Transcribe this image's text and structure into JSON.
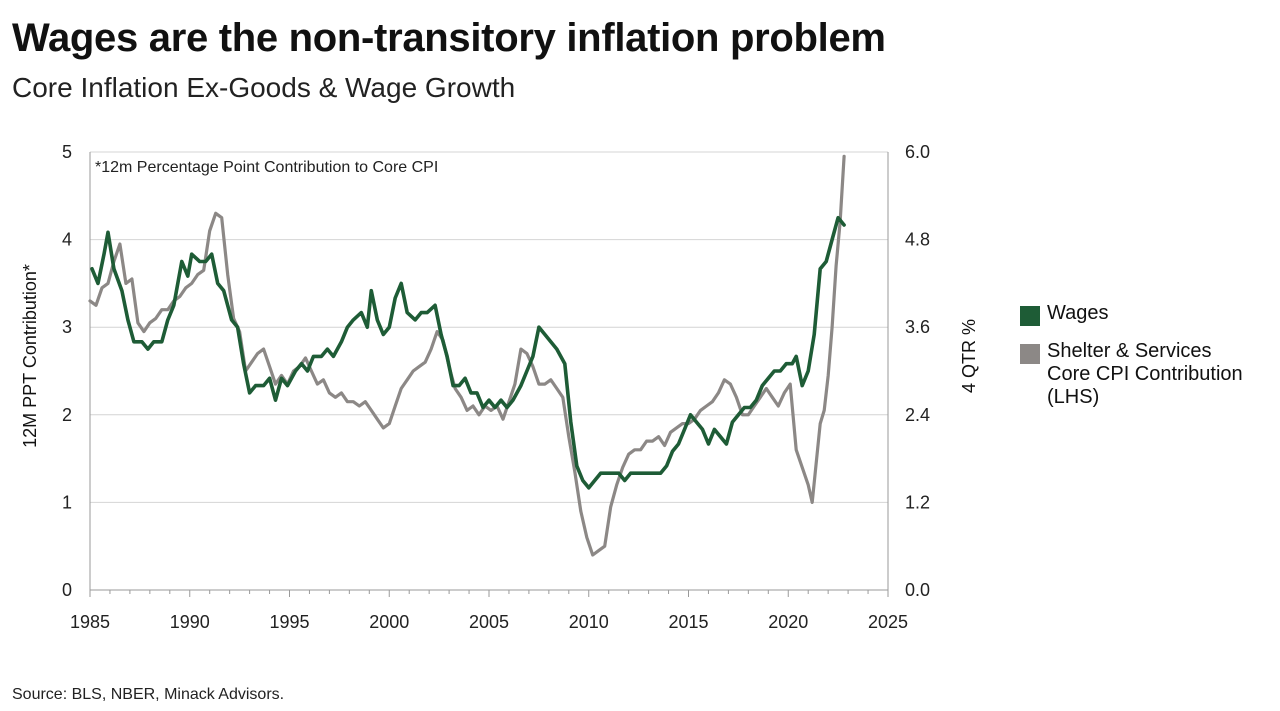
{
  "title": "Wages are the non-transitory inflation problem",
  "subtitle": "Core Inflation Ex-Goods & Wage Growth",
  "source": "Source: BLS, NBER, Minack Advisors.",
  "colors": {
    "wages": "#1e5c36",
    "shelter": "#8c8886",
    "grid": "#d4d4d4",
    "axis": "#9a9a9a"
  },
  "legend": {
    "wages": "Wages",
    "shelter_lines": [
      "Shelter & Services",
      "Core CPI Contribution",
      "(LHS)"
    ]
  },
  "chart_data": {
    "type": "line",
    "note": "*12m Percentage Point Contribution to Core CPI",
    "xlabel": "",
    "ylabel_left": "12M PPT Contribution*",
    "ylabel_right": "4 QTR %",
    "xlim": [
      1985,
      2025
    ],
    "xticks": [
      "1985",
      "1990",
      "1995",
      "2000",
      "2005",
      "2010",
      "2015",
      "2020",
      "2025"
    ],
    "ylim_left": [
      0,
      5
    ],
    "yticks_left": [
      "0",
      "1",
      "2",
      "3",
      "4",
      "5"
    ],
    "ylim_right": [
      0,
      6
    ],
    "yticks_right": [
      "0.0",
      "1.2",
      "2.4",
      "3.6",
      "4.8",
      "6.0"
    ],
    "grid": "horizontal",
    "legend_position": "right",
    "series": [
      {
        "name": "Shelter & Services Core CPI Contribution (LHS)",
        "axis": "left",
        "x": [
          1985.0,
          1985.3,
          1985.6,
          1985.9,
          1986.2,
          1986.5,
          1986.8,
          1987.1,
          1987.4,
          1987.7,
          1988.0,
          1988.3,
          1988.6,
          1988.9,
          1989.2,
          1989.5,
          1989.8,
          1990.1,
          1990.4,
          1990.7,
          1991.0,
          1991.3,
          1991.6,
          1991.9,
          1992.2,
          1992.5,
          1992.8,
          1993.1,
          1993.4,
          1993.7,
          1994.0,
          1994.3,
          1994.6,
          1994.9,
          1995.2,
          1995.5,
          1995.8,
          1996.1,
          1996.4,
          1996.7,
          1997.0,
          1997.3,
          1997.6,
          1997.9,
          1998.2,
          1998.5,
          1998.8,
          1999.1,
          1999.4,
          1999.7,
          2000.0,
          2000.3,
          2000.6,
          2000.9,
          2001.2,
          2001.5,
          2001.8,
          2002.1,
          2002.4,
          2002.7,
          2003.0,
          2003.3,
          2003.6,
          2003.9,
          2004.2,
          2004.5,
          2004.8,
          2005.1,
          2005.4,
          2005.7,
          2006.0,
          2006.3,
          2006.6,
          2006.9,
          2007.2,
          2007.5,
          2007.8,
          2008.1,
          2008.4,
          2008.7,
          2009.0,
          2009.3,
          2009.6,
          2009.9,
          2010.2,
          2010.5,
          2010.8,
          2011.1,
          2011.4,
          2011.7,
          2012.0,
          2012.3,
          2012.6,
          2012.9,
          2013.2,
          2013.5,
          2013.8,
          2014.1,
          2014.4,
          2014.7,
          2015.0,
          2015.3,
          2015.6,
          2015.9,
          2016.2,
          2016.5,
          2016.8,
          2017.1,
          2017.4,
          2017.7,
          2018.0,
          2018.3,
          2018.6,
          2018.9,
          2019.2,
          2019.5,
          2019.8,
          2020.1,
          2020.4,
          2020.7,
          2021.0,
          2021.2,
          2021.4,
          2021.6,
          2021.8,
          2022.0,
          2022.2,
          2022.4,
          2022.6,
          2022.8
        ],
        "y": [
          3.3,
          3.25,
          3.45,
          3.5,
          3.75,
          3.95,
          3.5,
          3.55,
          3.05,
          2.95,
          3.05,
          3.1,
          3.2,
          3.2,
          3.3,
          3.35,
          3.45,
          3.5,
          3.6,
          3.65,
          4.1,
          4.3,
          4.25,
          3.6,
          3.1,
          2.95,
          2.5,
          2.6,
          2.7,
          2.75,
          2.55,
          2.35,
          2.45,
          2.35,
          2.5,
          2.55,
          2.65,
          2.5,
          2.35,
          2.4,
          2.25,
          2.2,
          2.25,
          2.15,
          2.15,
          2.1,
          2.15,
          2.05,
          1.95,
          1.85,
          1.9,
          2.1,
          2.3,
          2.4,
          2.5,
          2.55,
          2.6,
          2.75,
          2.95,
          2.85,
          2.55,
          2.3,
          2.2,
          2.05,
          2.1,
          2.0,
          2.1,
          2.05,
          2.1,
          1.95,
          2.15,
          2.35,
          2.75,
          2.7,
          2.55,
          2.35,
          2.35,
          2.4,
          2.3,
          2.2,
          1.75,
          1.35,
          0.9,
          0.6,
          0.4,
          0.45,
          0.5,
          0.95,
          1.2,
          1.4,
          1.55,
          1.6,
          1.6,
          1.7,
          1.7,
          1.75,
          1.65,
          1.8,
          1.85,
          1.9,
          1.9,
          1.95,
          2.05,
          2.1,
          2.15,
          2.25,
          2.4,
          2.35,
          2.2,
          2.0,
          2.0,
          2.1,
          2.2,
          2.3,
          2.2,
          2.1,
          2.25,
          2.35,
          1.6,
          1.4,
          1.2,
          1.0,
          1.45,
          1.9,
          2.05,
          2.45,
          3.0,
          3.7,
          4.2,
          4.95
        ]
      },
      {
        "name": "Wages",
        "axis": "right",
        "x": [
          1985.1,
          1985.4,
          1985.7,
          1985.9,
          1986.2,
          1986.6,
          1986.9,
          1987.2,
          1987.6,
          1987.9,
          1988.2,
          1988.6,
          1988.9,
          1989.2,
          1989.6,
          1989.9,
          1990.1,
          1990.5,
          1990.8,
          1991.1,
          1991.4,
          1991.7,
          1992.1,
          1992.4,
          1992.7,
          1993.0,
          1993.3,
          1993.7,
          1994.0,
          1994.3,
          1994.6,
          1994.9,
          1995.3,
          1995.6,
          1995.9,
          1996.2,
          1996.6,
          1996.9,
          1997.2,
          1997.6,
          1997.9,
          1998.2,
          1998.6,
          1998.9,
          1999.1,
          1999.4,
          1999.7,
          2000.0,
          2000.3,
          2000.6,
          2000.9,
          2001.3,
          2001.6,
          2001.9,
          2002.3,
          2002.6,
          2002.9,
          2003.2,
          2003.5,
          2003.8,
          2004.1,
          2004.4,
          2004.7,
          2005.0,
          2005.3,
          2005.6,
          2005.9,
          2006.2,
          2006.6,
          2006.9,
          2007.2,
          2007.5,
          2007.8,
          2008.1,
          2008.4,
          2008.8,
          2009.1,
          2009.4,
          2009.7,
          2010.0,
          2010.3,
          2010.6,
          2010.9,
          2011.2,
          2011.5,
          2011.8,
          2012.1,
          2012.4,
          2012.7,
          2013.0,
          2013.3,
          2013.6,
          2013.9,
          2014.2,
          2014.5,
          2014.8,
          2015.1,
          2015.4,
          2015.7,
          2016.0,
          2016.3,
          2016.6,
          2016.9,
          2017.2,
          2017.5,
          2017.8,
          2018.1,
          2018.4,
          2018.7,
          2019.0,
          2019.3,
          2019.6,
          2019.9,
          2020.2,
          2020.4,
          2020.7,
          2021.0,
          2021.3,
          2021.6,
          2021.9,
          2022.2,
          2022.5,
          2022.8
        ],
        "y": [
          4.4,
          4.2,
          4.6,
          4.9,
          4.4,
          4.1,
          3.7,
          3.4,
          3.4,
          3.3,
          3.4,
          3.4,
          3.7,
          3.9,
          4.5,
          4.3,
          4.6,
          4.5,
          4.5,
          4.6,
          4.2,
          4.1,
          3.7,
          3.6,
          3.1,
          2.7,
          2.8,
          2.8,
          2.9,
          2.6,
          2.9,
          2.8,
          3.0,
          3.1,
          3.0,
          3.2,
          3.2,
          3.3,
          3.2,
          3.4,
          3.6,
          3.7,
          3.8,
          3.6,
          4.1,
          3.7,
          3.5,
          3.6,
          4.0,
          4.2,
          3.8,
          3.7,
          3.8,
          3.8,
          3.9,
          3.5,
          3.2,
          2.8,
          2.8,
          2.9,
          2.7,
          2.7,
          2.5,
          2.6,
          2.5,
          2.6,
          2.5,
          2.6,
          2.8,
          3.0,
          3.2,
          3.6,
          3.5,
          3.4,
          3.3,
          3.1,
          2.3,
          1.7,
          1.5,
          1.4,
          1.5,
          1.6,
          1.6,
          1.6,
          1.6,
          1.5,
          1.6,
          1.6,
          1.6,
          1.6,
          1.6,
          1.6,
          1.7,
          1.9,
          2.0,
          2.2,
          2.4,
          2.3,
          2.2,
          2.0,
          2.2,
          2.1,
          2.0,
          2.3,
          2.4,
          2.5,
          2.5,
          2.6,
          2.8,
          2.9,
          3.0,
          3.0,
          3.1,
          3.1,
          3.2,
          2.8,
          3.0,
          3.5,
          4.4,
          4.5,
          4.8,
          5.1,
          5.0
        ]
      }
    ]
  }
}
